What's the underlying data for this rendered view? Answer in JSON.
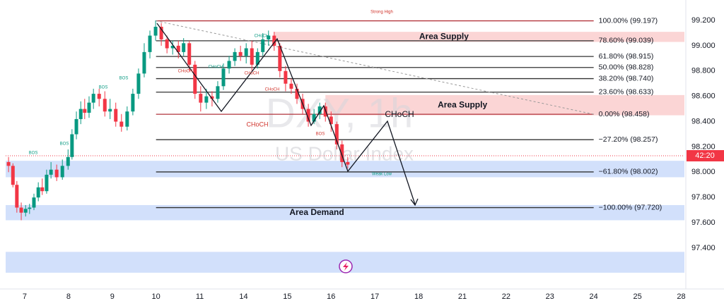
{
  "chart_data": {
    "type": "candlestick",
    "watermark_title": "DXY, 1h",
    "watermark_subtitle": "US Dollar Index",
    "xlim": [
      -0.436,
      15.073
    ],
    "ylim": [
      97.0765,
      99.3617
    ],
    "xticks": [
      {
        "value": 0,
        "label": "7"
      },
      {
        "value": 1,
        "label": "8"
      },
      {
        "value": 2,
        "label": "9"
      },
      {
        "value": 3,
        "label": "10"
      },
      {
        "value": 4,
        "label": "11"
      },
      {
        "value": 5,
        "label": "14"
      },
      {
        "value": 6,
        "label": "15"
      },
      {
        "value": 7,
        "label": "16"
      },
      {
        "value": 8,
        "label": "17"
      },
      {
        "value": 9,
        "label": "18"
      },
      {
        "value": 10,
        "label": "21"
      },
      {
        "value": 11,
        "label": "22"
      },
      {
        "value": 12,
        "label": "23"
      },
      {
        "value": 13,
        "label": "24"
      },
      {
        "value": 14,
        "label": "25"
      },
      {
        "value": 15,
        "label": "28"
      }
    ],
    "yticks": [
      {
        "value": 99.2,
        "label": "99.200"
      },
      {
        "value": 99.0,
        "label": "99.000"
      },
      {
        "value": 98.8,
        "label": "98.800"
      },
      {
        "value": 98.6,
        "label": "98.600"
      },
      {
        "value": 98.4,
        "label": "98.400"
      },
      {
        "value": 98.2,
        "label": "98.200"
      },
      {
        "value": 98.0,
        "label": "98.000"
      },
      {
        "value": 97.8,
        "label": "97.800"
      },
      {
        "value": 97.6,
        "label": "97.600"
      },
      {
        "value": 97.4,
        "label": "97.400"
      }
    ],
    "up_color": "#089981",
    "down_color": "#f23645",
    "x": [
      -0.37,
      -0.27,
      -0.18,
      -0.08,
      0.02,
      0.11,
      0.21,
      0.31,
      0.4,
      0.5,
      0.6,
      0.73,
      0.86,
      0.99,
      1.08,
      1.18,
      1.28,
      1.37,
      1.47,
      1.57,
      1.7,
      1.83,
      1.95,
      2.08,
      2.21,
      2.34,
      2.47,
      2.6,
      2.73,
      2.86,
      2.99,
      3.12,
      3.25,
      3.38,
      3.51,
      3.63,
      3.76,
      3.89,
      4.02,
      4.15,
      4.28,
      4.41,
      4.54,
      4.67,
      4.8,
      4.93,
      5.06,
      5.19,
      5.32,
      5.44,
      5.57,
      5.7,
      5.83,
      5.96,
      6.09,
      6.22,
      6.35,
      6.48,
      6.61,
      6.74,
      6.87,
      7.0,
      7.13,
      7.25,
      7.38
    ],
    "open": [
      98.08,
      98.05,
      97.9,
      97.72,
      97.68,
      97.71,
      97.72,
      97.8,
      97.88,
      97.85,
      97.98,
      98.02,
      97.96,
      98.05,
      98.12,
      98.3,
      98.42,
      98.5,
      98.47,
      98.55,
      98.62,
      98.58,
      98.48,
      98.5,
      98.4,
      98.36,
      98.48,
      98.62,
      98.78,
      98.95,
      99.08,
      99.15,
      99.05,
      98.98,
      99.0,
      98.95,
      99.02,
      98.85,
      98.62,
      98.55,
      98.6,
      98.58,
      98.68,
      98.82,
      98.88,
      98.95,
      98.92,
      98.98,
      98.85,
      98.95,
      99.05,
      99.08,
      99.0,
      98.8,
      98.7,
      98.66,
      98.58,
      98.5,
      98.4,
      98.46,
      98.52,
      98.44,
      98.38,
      98.22,
      98.08
    ],
    "high": [
      98.12,
      98.07,
      97.93,
      97.76,
      97.74,
      97.75,
      97.83,
      97.92,
      97.95,
      98.02,
      98.08,
      98.06,
      98.1,
      98.18,
      98.34,
      98.48,
      98.56,
      98.58,
      98.6,
      98.66,
      98.66,
      98.64,
      98.58,
      98.55,
      98.46,
      98.52,
      98.66,
      98.82,
      99.02,
      99.12,
      99.2,
      99.18,
      99.08,
      99.04,
      99.04,
      99.06,
      99.04,
      98.88,
      98.68,
      98.66,
      98.64,
      98.72,
      98.86,
      98.92,
      98.98,
      99.0,
      99.02,
      99.04,
      98.98,
      99.1,
      99.12,
      99.11,
      99.02,
      98.84,
      98.74,
      98.7,
      98.62,
      98.54,
      98.5,
      98.55,
      98.55,
      98.48,
      98.4,
      98.25,
      98.12
    ],
    "low": [
      98.0,
      97.88,
      97.68,
      97.62,
      97.65,
      97.67,
      97.7,
      97.77,
      97.82,
      97.83,
      97.95,
      97.93,
      97.94,
      98.02,
      98.1,
      98.26,
      98.38,
      98.42,
      98.43,
      98.5,
      98.52,
      98.44,
      98.42,
      98.36,
      98.32,
      98.33,
      98.45,
      98.58,
      98.75,
      98.9,
      99.04,
      99.0,
      98.94,
      98.93,
      98.9,
      98.92,
      98.8,
      98.58,
      98.48,
      98.5,
      98.52,
      98.55,
      98.65,
      98.78,
      98.84,
      98.88,
      98.86,
      98.8,
      98.82,
      98.92,
      99.0,
      98.96,
      98.75,
      98.64,
      98.62,
      98.54,
      98.46,
      98.36,
      98.38,
      98.42,
      98.4,
      98.32,
      98.18,
      98.04,
      98.03
    ],
    "close": [
      98.05,
      97.9,
      97.72,
      97.68,
      97.71,
      97.72,
      97.8,
      97.88,
      97.85,
      97.98,
      98.02,
      97.96,
      98.05,
      98.12,
      98.3,
      98.42,
      98.5,
      98.47,
      98.55,
      98.62,
      98.58,
      98.48,
      98.5,
      98.4,
      98.36,
      98.48,
      98.62,
      98.78,
      98.95,
      99.08,
      99.15,
      99.05,
      98.98,
      99.0,
      98.95,
      99.02,
      98.85,
      98.62,
      98.55,
      98.6,
      98.58,
      98.68,
      98.82,
      98.88,
      98.95,
      98.92,
      98.98,
      98.85,
      98.95,
      99.05,
      99.08,
      99.0,
      98.8,
      98.7,
      98.66,
      98.58,
      98.5,
      98.4,
      98.46,
      98.52,
      98.44,
      98.38,
      98.22,
      98.08,
      98.06
    ],
    "fib_start": 3.0,
    "fib_end": 13.0,
    "fib_levels": [
      {
        "label": "100.00% (99.197)",
        "value": 99.197,
        "color": "#b2343c"
      },
      {
        "label": "78.60% (99.039)",
        "value": 99.039,
        "color": "#333333"
      },
      {
        "label": "61.80% (98.915)",
        "value": 98.915,
        "color": "#333333"
      },
      {
        "label": "50.00% (98.828)",
        "value": 98.828,
        "color": "#333333"
      },
      {
        "label": "38.20% (98.740)",
        "value": 98.74,
        "color": "#333333"
      },
      {
        "label": "23.60% (98.633)",
        "value": 98.633,
        "color": "#333333"
      },
      {
        "label": "0.00% (98.458)",
        "value": 98.458,
        "color": "#b2343c"
      },
      {
        "label": "−27.20% (98.257)",
        "value": 98.257,
        "color": "#333333"
      },
      {
        "label": "−61.80% (98.002)",
        "value": 98.002,
        "color": "#333333"
      },
      {
        "label": "−100.00% (97.720)",
        "value": 97.72,
        "color": "#333333"
      }
    ],
    "zones": [
      {
        "label": "Area Supply",
        "top": 99.11,
        "bottom": 99.03,
        "start": 5.7,
        "color": "#fbd5d5"
      },
      {
        "label": "Area Supply",
        "top": 98.61,
        "bottom": 98.45,
        "start": 6.87,
        "color": "#fbd5d5"
      },
      {
        "label": null,
        "top": 98.09,
        "bottom": 97.96,
        "start": -0.436,
        "color": "#d2e0fb"
      },
      {
        "label": "Area Demand",
        "top": 97.74,
        "bottom": 97.62,
        "start": -0.436,
        "color": "#d2e0fb"
      },
      {
        "label": null,
        "top": 97.37,
        "bottom": 97.205,
        "start": -0.436,
        "color": "#d2e0fb"
      }
    ],
    "annotations": [
      "Strong High",
      "BOS",
      "BOS",
      "BOS",
      "BOS",
      "CHoCH",
      "CHoCH",
      "CHoCH",
      "CHoCH",
      "CHoCH",
      "CHoCH",
      "BOS",
      "Weak Low",
      "CHoCH"
    ],
    "last_price": 98.13,
    "countdown": "42:20"
  }
}
